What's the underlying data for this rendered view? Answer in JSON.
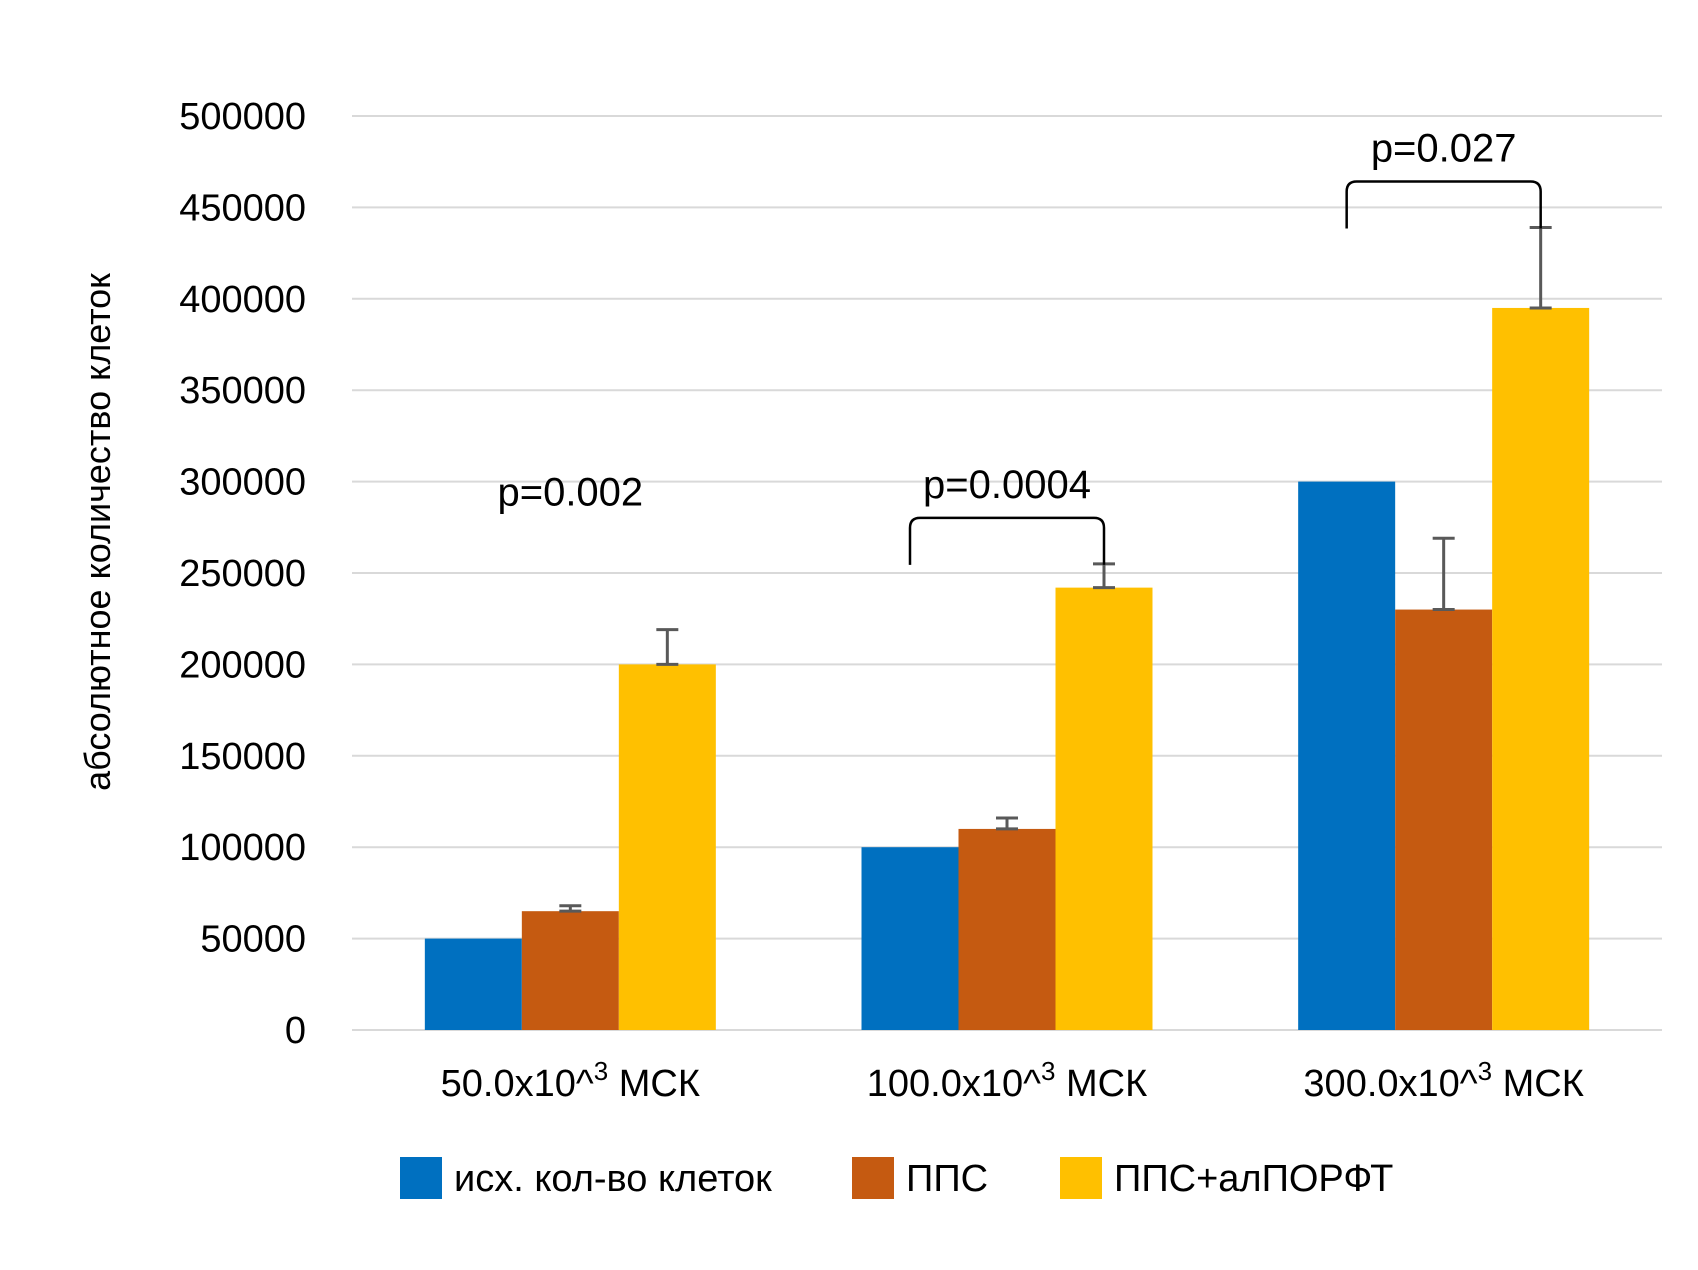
{
  "chart_data": {
    "type": "bar",
    "ylabel": "абсолютное количество клеток",
    "ylim": [
      0,
      500000
    ],
    "yticks": [
      0,
      50000,
      100000,
      150000,
      200000,
      250000,
      300000,
      350000,
      400000,
      450000,
      500000
    ],
    "grid": true,
    "legend_position": "bottom",
    "categories": [
      {
        "base": "50.0x10^",
        "sup": "3",
        "suffix": " МСК"
      },
      {
        "base": "100.0x10^",
        "sup": "3",
        "suffix": " МСК"
      },
      {
        "base": "300.0x10^",
        "sup": "3",
        "suffix": " МСК"
      }
    ],
    "series": [
      {
        "name": "исх. кол-во клеток",
        "color": "#0070C0",
        "values": [
          50000,
          100000,
          300000
        ],
        "errors": [
          null,
          null,
          null
        ]
      },
      {
        "name": "ППС",
        "color": "#C55A11",
        "values": [
          65000,
          110000,
          230000
        ],
        "errors": [
          3000,
          6000,
          39000
        ]
      },
      {
        "name": "ППС+алПОРФТ",
        "color": "#FFC000",
        "values": [
          200000,
          242000,
          395000
        ],
        "errors": [
          19000,
          13000,
          44000
        ]
      }
    ],
    "annotations": [
      {
        "text": "p=0.002",
        "category_index": 0,
        "bracket": false
      },
      {
        "text": "p=0.0004",
        "category_index": 1,
        "bracket": true
      },
      {
        "text": "p=0.027",
        "category_index": 2,
        "bracket": true
      }
    ],
    "colors": {
      "grid": "#D9D9D9",
      "error_bar": "#595959"
    }
  }
}
